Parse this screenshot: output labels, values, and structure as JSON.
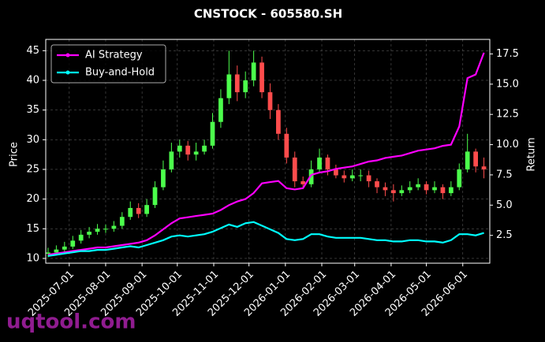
{
  "chart_data": {
    "type": "candlestick",
    "title": "CNSTOCK - 605580.SH",
    "ylabel": "Price",
    "y2label": "Return",
    "watermark": "uqtool.com",
    "x": [
      "2025-06-13",
      "2025-06-20",
      "2025-06-27",
      "2025-07-04",
      "2025-07-11",
      "2025-07-18",
      "2025-07-25",
      "2025-08-01",
      "2025-08-08",
      "2025-08-15",
      "2025-08-22",
      "2025-08-29",
      "2025-09-05",
      "2025-09-12",
      "2025-09-19",
      "2025-09-26",
      "2025-10-03",
      "2025-10-10",
      "2025-10-17",
      "2025-10-24",
      "2025-10-31",
      "2025-11-07",
      "2025-11-14",
      "2025-11-21",
      "2025-11-28",
      "2025-12-05",
      "2025-12-12",
      "2025-12-19",
      "2025-12-26",
      "2026-01-02",
      "2026-01-09",
      "2026-01-16",
      "2026-01-23",
      "2026-01-30",
      "2026-02-06",
      "2026-02-13",
      "2026-02-20",
      "2026-02-27",
      "2026-03-06",
      "2026-03-13",
      "2026-03-20",
      "2026-03-27",
      "2026-04-03",
      "2026-04-10",
      "2026-04-17",
      "2026-04-24",
      "2026-05-01",
      "2026-05-08",
      "2026-05-15",
      "2026-05-22",
      "2026-05-29",
      "2026-06-05",
      "2026-06-12",
      "2026-06-19"
    ],
    "open": [
      10.8,
      11,
      11.5,
      12,
      13,
      14,
      14.5,
      15,
      15,
      15.5,
      17,
      18.5,
      17.5,
      19,
      22,
      25,
      28,
      29,
      27.5,
      28,
      29,
      33,
      37,
      41,
      38,
      40,
      43,
      38,
      35,
      31,
      27,
      23,
      22.5,
      25,
      27,
      25,
      24,
      23.5,
      24,
      24,
      23,
      22,
      21.5,
      21,
      21.5,
      22,
      22.5,
      21.5,
      22,
      21,
      22,
      25,
      28,
      25.5
    ],
    "high": [
      11.8,
      12.2,
      12.8,
      13.8,
      14.8,
      15.3,
      15.8,
      15.7,
      16.3,
      17.8,
      19.6,
      19.3,
      20,
      23,
      26.5,
      29.5,
      30,
      29.8,
      29.5,
      30,
      34.5,
      38.5,
      45,
      42.5,
      41.5,
      45,
      44,
      39.5,
      36,
      32,
      28,
      23.8,
      26.5,
      28.5,
      27.5,
      25.8,
      24.8,
      25,
      25,
      24.8,
      23.5,
      22.8,
      22.5,
      22.3,
      23,
      23.5,
      23,
      23,
      22.5,
      23,
      26,
      31,
      28.5,
      27
    ],
    "low": [
      10.2,
      10.6,
      11,
      11.6,
      12.5,
      13.4,
      14,
      14.3,
      14.5,
      15,
      16.5,
      16.8,
      17,
      18.5,
      21.5,
      24.5,
      27,
      26.5,
      26.5,
      27.5,
      28.5,
      32,
      36,
      36.5,
      37,
      39,
      37,
      33.5,
      30,
      26,
      22,
      21.8,
      22,
      24.5,
      24,
      23.5,
      22.8,
      23,
      23,
      22,
      21,
      20.5,
      19.6,
      20.5,
      21,
      21.5,
      20.8,
      21,
      20,
      20.5,
      21.5,
      24.5,
      24.5,
      23.5
    ],
    "close": [
      11,
      11.5,
      12,
      13,
      14,
      14.5,
      15,
      15,
      15.5,
      17,
      18.5,
      17.5,
      19,
      22,
      25,
      28,
      29,
      27.5,
      28,
      29,
      33,
      37,
      41,
      38,
      40,
      43,
      38,
      35,
      31,
      27,
      23,
      22.5,
      25,
      27,
      25,
      24,
      23.5,
      24,
      24,
      23,
      22,
      21.5,
      21,
      21.5,
      22,
      22.5,
      21.5,
      22,
      21,
      22,
      25,
      28,
      25.5,
      25
    ],
    "up_color": "#4cff4c",
    "down_color": "#ff4c4c",
    "series": [
      {
        "name": "AI Strategy",
        "color": "#ff00ff",
        "axis": "y2",
        "values": [
          0.9,
          1.0,
          1.1,
          1.2,
          1.3,
          1.4,
          1.5,
          1.5,
          1.6,
          1.7,
          1.8,
          1.9,
          2.1,
          2.5,
          3.0,
          3.5,
          3.9,
          4.0,
          4.1,
          4.2,
          4.3,
          4.6,
          5.0,
          5.3,
          5.5,
          6.0,
          6.8,
          6.9,
          7.0,
          6.4,
          6.3,
          6.4,
          7.5,
          7.7,
          7.8,
          8.0,
          8.1,
          8.2,
          8.4,
          8.6,
          8.7,
          8.9,
          9.0,
          9.1,
          9.3,
          9.5,
          9.6,
          9.7,
          9.9,
          10.0,
          11.5,
          15.5,
          15.8,
          17.6
        ]
      },
      {
        "name": "Buy-and-Hold",
        "color": "#00ffff",
        "axis": "y2",
        "values": [
          0.8,
          0.9,
          1.0,
          1.1,
          1.2,
          1.2,
          1.3,
          1.3,
          1.4,
          1.5,
          1.6,
          1.5,
          1.7,
          1.9,
          2.1,
          2.4,
          2.5,
          2.4,
          2.5,
          2.6,
          2.8,
          3.1,
          3.4,
          3.2,
          3.5,
          3.6,
          3.3,
          3.0,
          2.7,
          2.2,
          2.1,
          2.2,
          2.6,
          2.6,
          2.4,
          2.3,
          2.3,
          2.3,
          2.3,
          2.2,
          2.1,
          2.1,
          2.0,
          2.0,
          2.1,
          2.1,
          2.0,
          2.0,
          1.9,
          2.1,
          2.6,
          2.6,
          2.5,
          2.7
        ]
      }
    ],
    "xlim": [
      "2025-06-11",
      "2026-06-24"
    ],
    "xticks": [
      "2025-07-01",
      "2025-08-01",
      "2025-09-01",
      "2025-10-01",
      "2025-11-01",
      "2025-12-01",
      "2026-01-01",
      "2026-02-01",
      "2026-03-01",
      "2026-04-01",
      "2026-05-01",
      "2026-06-01"
    ],
    "ylim": [
      9.2,
      46.9
    ],
    "yticks": [
      10,
      15,
      20,
      25,
      30,
      35,
      40,
      45
    ],
    "y2lim": [
      0.2,
      18.7
    ],
    "y2ticks": [
      2.5,
      {
        "value": 5,
        "label": "5.0"
      },
      7.5,
      {
        "value": 10,
        "label": "10.0"
      },
      12.5,
      {
        "value": 15,
        "label": "15.0"
      },
      17.5
    ],
    "grid": true,
    "legend": "upper left"
  }
}
